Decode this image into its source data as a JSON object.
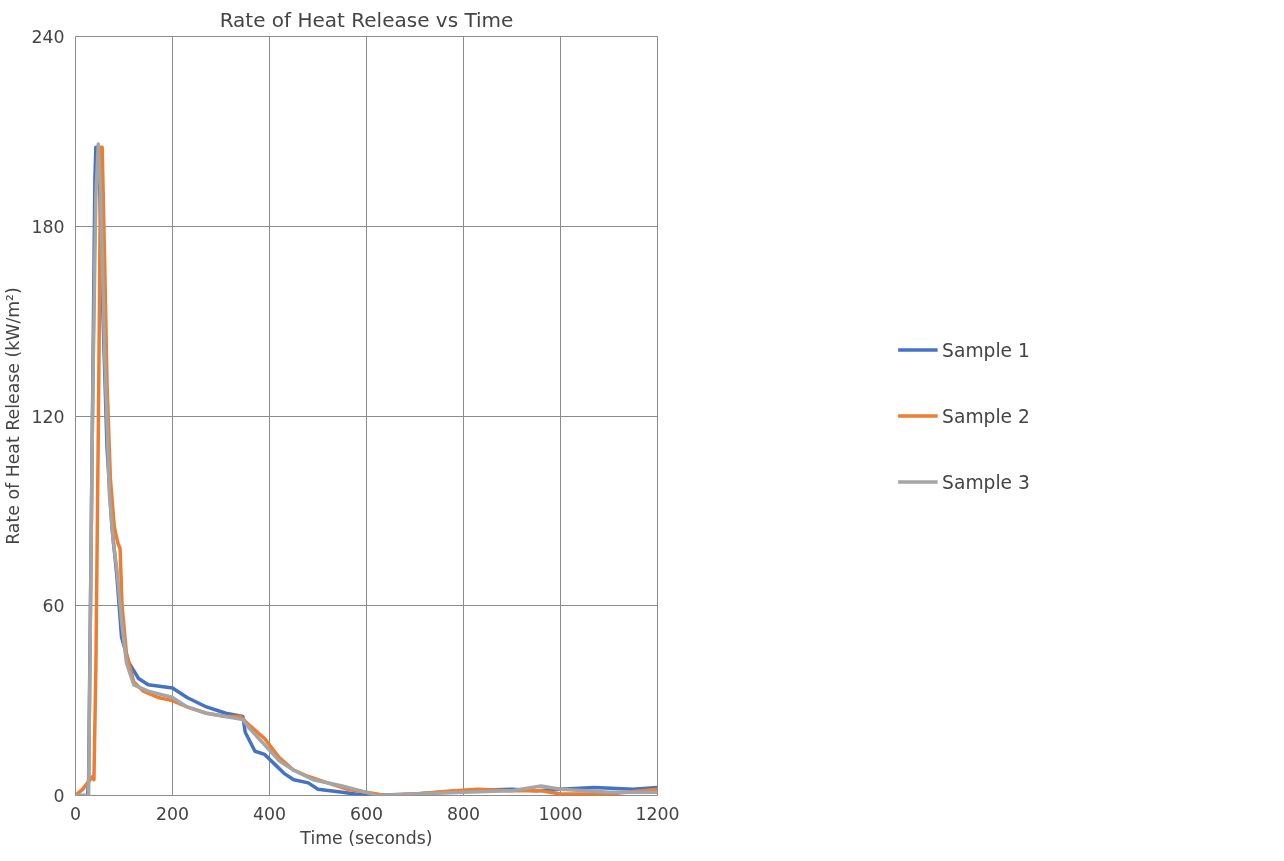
{
  "chart_data": {
    "type": "line",
    "title": "Rate of Heat Release vs Time",
    "xlabel": "Time (seconds)",
    "ylabel": "Rate of Heat Release (kW/m²)",
    "xlim": [
      0,
      1200
    ],
    "xticks": [
      0,
      200,
      400,
      600,
      800,
      1000,
      1200
    ],
    "ylim": [
      0,
      240
    ],
    "yticks": [
      0,
      60,
      120,
      180,
      240
    ],
    "grid": true,
    "legend": "right",
    "marker": "none",
    "line_style": "solid",
    "series": [
      {
        "name": "Sample 1",
        "color": "#4472c4",
        "x": [
          0,
          10,
          25,
          27,
          35,
          40,
          42,
          48,
          55,
          65,
          75,
          85,
          95,
          110,
          130,
          150,
          200,
          230,
          270,
          310,
          345,
          350,
          370,
          390,
          410,
          430,
          450,
          480,
          500,
          550,
          600,
          700,
          800,
          900,
          950,
          1000,
          1070,
          1150,
          1200
        ],
        "values": [
          0,
          0,
          0,
          5,
          120,
          195,
          205,
          205,
          160,
          110,
          85,
          70,
          50,
          42,
          37,
          35,
          34,
          31,
          28,
          26,
          25,
          20,
          14,
          13,
          10,
          7,
          5,
          4,
          2,
          1,
          0,
          0.5,
          1.5,
          2,
          1.5,
          2,
          2.5,
          2,
          2.5
        ]
      },
      {
        "name": "Sample 2",
        "color": "#ed7d31",
        "x": [
          0,
          15,
          30,
          35,
          38,
          42,
          48,
          52,
          55,
          60,
          65,
          72,
          80,
          87,
          92,
          96,
          105,
          120,
          140,
          170,
          200,
          230,
          270,
          310,
          340,
          360,
          390,
          420,
          450,
          480,
          520,
          560,
          600,
          640,
          700,
          780,
          830,
          900,
          960,
          1000,
          1100,
          1200
        ],
        "values": [
          0,
          2,
          5,
          6,
          5,
          40,
          130,
          205,
          205,
          170,
          130,
          100,
          85,
          80,
          78,
          60,
          45,
          36,
          33,
          31,
          30,
          28,
          26,
          25,
          25,
          22,
          18,
          12,
          8,
          6,
          4,
          2,
          1,
          0,
          0.5,
          1.5,
          2,
          1.5,
          1.5,
          0.5,
          0.5,
          2
        ]
      },
      {
        "name": "Sample 3",
        "color": "#a5a5a5",
        "x": [
          0,
          20,
          27,
          29,
          35,
          42,
          47,
          52,
          60,
          70,
          78,
          85,
          95,
          105,
          120,
          150,
          200,
          230,
          270,
          310,
          345,
          360,
          390,
          420,
          450,
          490,
          550,
          600,
          620,
          700,
          800,
          900,
          960,
          1000,
          1100,
          1200
        ],
        "values": [
          0,
          0,
          0,
          30,
          120,
          190,
          206,
          190,
          140,
          95,
          80,
          72,
          55,
          42,
          35,
          33,
          31,
          28,
          26,
          25,
          24,
          21,
          16,
          11,
          8,
          5,
          3,
          1,
          0,
          0.5,
          1,
          1.5,
          3,
          2,
          1,
          1
        ]
      }
    ]
  }
}
